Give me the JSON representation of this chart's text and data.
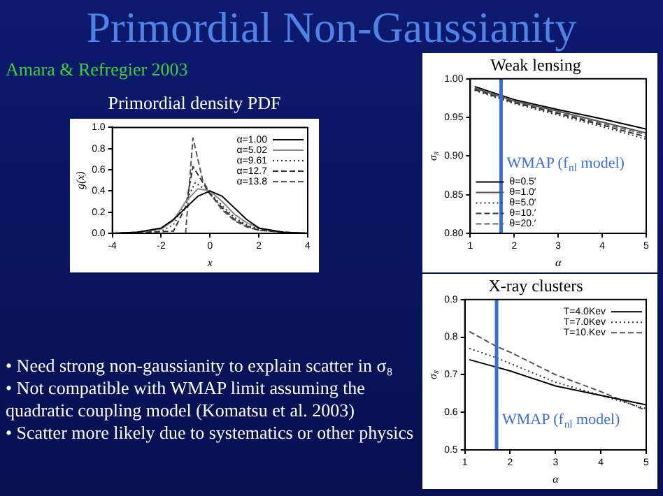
{
  "chart_data": [
    {
      "type": "line",
      "title": "Primordial Non-Gaussianity",
      "subtitle": "Primordial density PDF",
      "xlabel": "x",
      "ylabel": "g(x)",
      "annotations": [
        "Amara & Refregier 2003",
        "• Need strong non-gaussianity  to explain scatter in σ₈",
        "• Not compatible with WMAP limit assuming the quadratic coupling model (Komatsu et al. 2003)",
        "• Scatter more likely due to systematics or other physics"
      ],
      "xlim": [
        -4,
        4
      ],
      "xticks": [
        -4,
        -2,
        0,
        2,
        4
      ],
      "ylim": [
        0,
        1
      ],
      "yticks": [
        {
          "value": 0,
          "label": "0.0"
        },
        0.2,
        0.4,
        0.6,
        0.8,
        {
          "value": 1,
          "label": "1.0"
        }
      ],
      "legend": "top right",
      "marker": "none",
      "series": [
        {
          "name": "α=1.00",
          "color": "#000000",
          "line_style": "solid",
          "x": [
            -4,
            -3,
            -2,
            -1.5,
            -1,
            -0.5,
            0,
            0.5,
            1,
            1.5,
            2,
            3,
            4
          ],
          "values": [
            0,
            0.01,
            0.05,
            0.13,
            0.24,
            0.35,
            0.4,
            0.35,
            0.24,
            0.13,
            0.05,
            0.01,
            0
          ]
        },
        {
          "name": "α=5.02",
          "color": "#888888",
          "line_style": "solid",
          "x": [
            -4,
            -3,
            -2,
            -1.5,
            -1,
            -0.5,
            0,
            0.5,
            1,
            1.5,
            2,
            3,
            4
          ],
          "values": [
            0,
            0.01,
            0.04,
            0.12,
            0.3,
            0.42,
            0.4,
            0.3,
            0.18,
            0.1,
            0.05,
            0.01,
            0
          ]
        },
        {
          "name": "α=9.61",
          "color": "#333333",
          "line_style": "dotted",
          "x": [
            -4,
            -2,
            -1.5,
            -1,
            -0.6,
            0,
            0.5,
            1,
            1.5,
            2,
            3,
            4
          ],
          "values": [
            0,
            0.02,
            0.08,
            0.3,
            0.48,
            0.38,
            0.26,
            0.15,
            0.08,
            0.04,
            0.01,
            0
          ]
        },
        {
          "name": "α=12.7",
          "color": "#333333",
          "line_style": "dashed",
          "x": [
            -4,
            -1.5,
            -1,
            -0.7,
            0,
            0.5,
            1,
            1.5,
            2,
            3,
            4
          ],
          "values": [
            0,
            0.02,
            0.25,
            0.63,
            0.37,
            0.24,
            0.13,
            0.07,
            0.03,
            0.01,
            0
          ]
        },
        {
          "name": "α=13.8",
          "color": "#555555",
          "line_style": "dashed",
          "x": [
            -1,
            -0.7,
            -0.3,
            0,
            0.5,
            1,
            1.5,
            2,
            3,
            4
          ],
          "values": [
            0,
            0.9,
            0.5,
            0.38,
            0.22,
            0.12,
            0.06,
            0.03,
            0.01,
            0
          ]
        }
      ]
    },
    {
      "type": "line",
      "title": "Weak lensing",
      "xlabel": "α",
      "ylabel": "σ₈",
      "xlim": [
        1,
        5
      ],
      "xticks": [
        1,
        2,
        3,
        4,
        5
      ],
      "ylim": [
        0.8,
        1
      ],
      "yticks": [
        {
          "value": 0.8,
          "label": "0.80"
        },
        0.85,
        {
          "value": 0.9,
          "label": "0.90"
        },
        0.95,
        {
          "value": 1,
          "label": "1.00"
        }
      ],
      "legend": "bottom left",
      "marker": "none",
      "ref_lines": [
        {
          "axis": "x",
          "value": 1.7,
          "label": "WMAP (f$_{nl}$ model)",
          "color": "#3b6fd8"
        }
      ],
      "series": [
        {
          "name": "θ=0.5′",
          "color": "#000000",
          "line_style": "solid",
          "x": [
            1.1,
            2,
            3,
            4,
            5
          ],
          "values": [
            0.99,
            0.973,
            0.96,
            0.948,
            0.935
          ]
        },
        {
          "name": "θ=1.0′",
          "color": "#555555",
          "line_style": "solid",
          "x": [
            1.1,
            2,
            3,
            4,
            5
          ],
          "values": [
            0.988,
            0.971,
            0.958,
            0.944,
            0.93
          ]
        },
        {
          "name": "θ=5.0′",
          "color": "#333333",
          "line_style": "dotted",
          "x": [
            1.1,
            2,
            3,
            4,
            5
          ],
          "values": [
            0.985,
            0.968,
            0.953,
            0.938,
            0.922
          ]
        },
        {
          "name": "θ=10.′",
          "color": "#333333",
          "line_style": "dashed",
          "x": [
            1.1,
            2,
            3,
            4,
            5
          ],
          "values": [
            0.986,
            0.969,
            0.955,
            0.94,
            0.925
          ]
        },
        {
          "name": "θ=20.′",
          "color": "#666666",
          "line_style": "dashed",
          "x": [
            1.1,
            2,
            3,
            4,
            5
          ],
          "values": [
            0.987,
            0.97,
            0.956,
            0.942,
            0.928
          ]
        }
      ]
    },
    {
      "type": "line",
      "title": "X-ray clusters",
      "xlabel": "α",
      "ylabel": "σ₈",
      "xlim": [
        1,
        5
      ],
      "xticks": [
        1,
        2,
        3,
        4,
        5
      ],
      "ylim": [
        0.5,
        0.9
      ],
      "yticks": [
        0.5,
        0.6,
        0.7,
        0.8,
        0.9
      ],
      "legend": "top right",
      "marker": "none",
      "ref_lines": [
        {
          "axis": "x",
          "value": 1.7,
          "label": "WMAP (f$_{nl}$ model)",
          "color": "#3b6fd8"
        }
      ],
      "series": [
        {
          "name": "T=4.0Kev",
          "color": "#000000",
          "line_style": "solid",
          "x": [
            1.1,
            1.7,
            2,
            3,
            4,
            5
          ],
          "values": [
            0.74,
            0.72,
            0.71,
            0.67,
            0.645,
            0.62
          ]
        },
        {
          "name": "T=7.0Kev",
          "color": "#333333",
          "line_style": "dotted",
          "x": [
            1.1,
            1.7,
            2,
            3,
            4,
            5
          ],
          "values": [
            0.77,
            0.745,
            0.73,
            0.68,
            0.645,
            0.61
          ]
        },
        {
          "name": "T=10.Kev",
          "color": "#555555",
          "line_style": "dashed",
          "x": [
            1.1,
            1.7,
            2,
            3,
            4,
            5
          ],
          "values": [
            0.815,
            0.775,
            0.76,
            0.7,
            0.655,
            0.605
          ]
        }
      ]
    }
  ]
}
